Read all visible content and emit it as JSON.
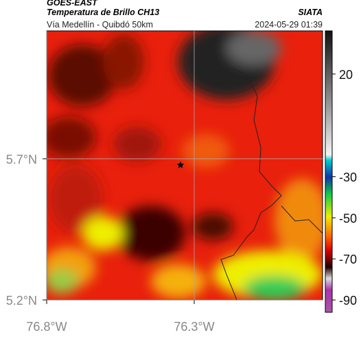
{
  "header": {
    "source": "GOES-EAST",
    "title": "Temperatura de Brillo CH13",
    "org": "SIATA",
    "subtitle": "Vía Medellín - Quibdó 50km",
    "timestamp": "2024-05-29 01:39"
  },
  "map": {
    "xlim": [
      -76.8,
      -75.865
    ],
    "ylim": [
      5.2,
      6.153
    ],
    "xticks": [
      {
        "value": -76.8,
        "label": "76.8°W"
      },
      {
        "value": -76.3,
        "label": "76.3°W"
      }
    ],
    "yticks": [
      {
        "value": 5.2,
        "label": "5.2°N"
      },
      {
        "value": 5.7,
        "label": "5.7°N"
      }
    ],
    "grid": true
  },
  "colorbar": {
    "lim": [
      -96,
      41
    ],
    "ticks": [
      20,
      -30,
      -50,
      -70,
      -90
    ]
  }
}
